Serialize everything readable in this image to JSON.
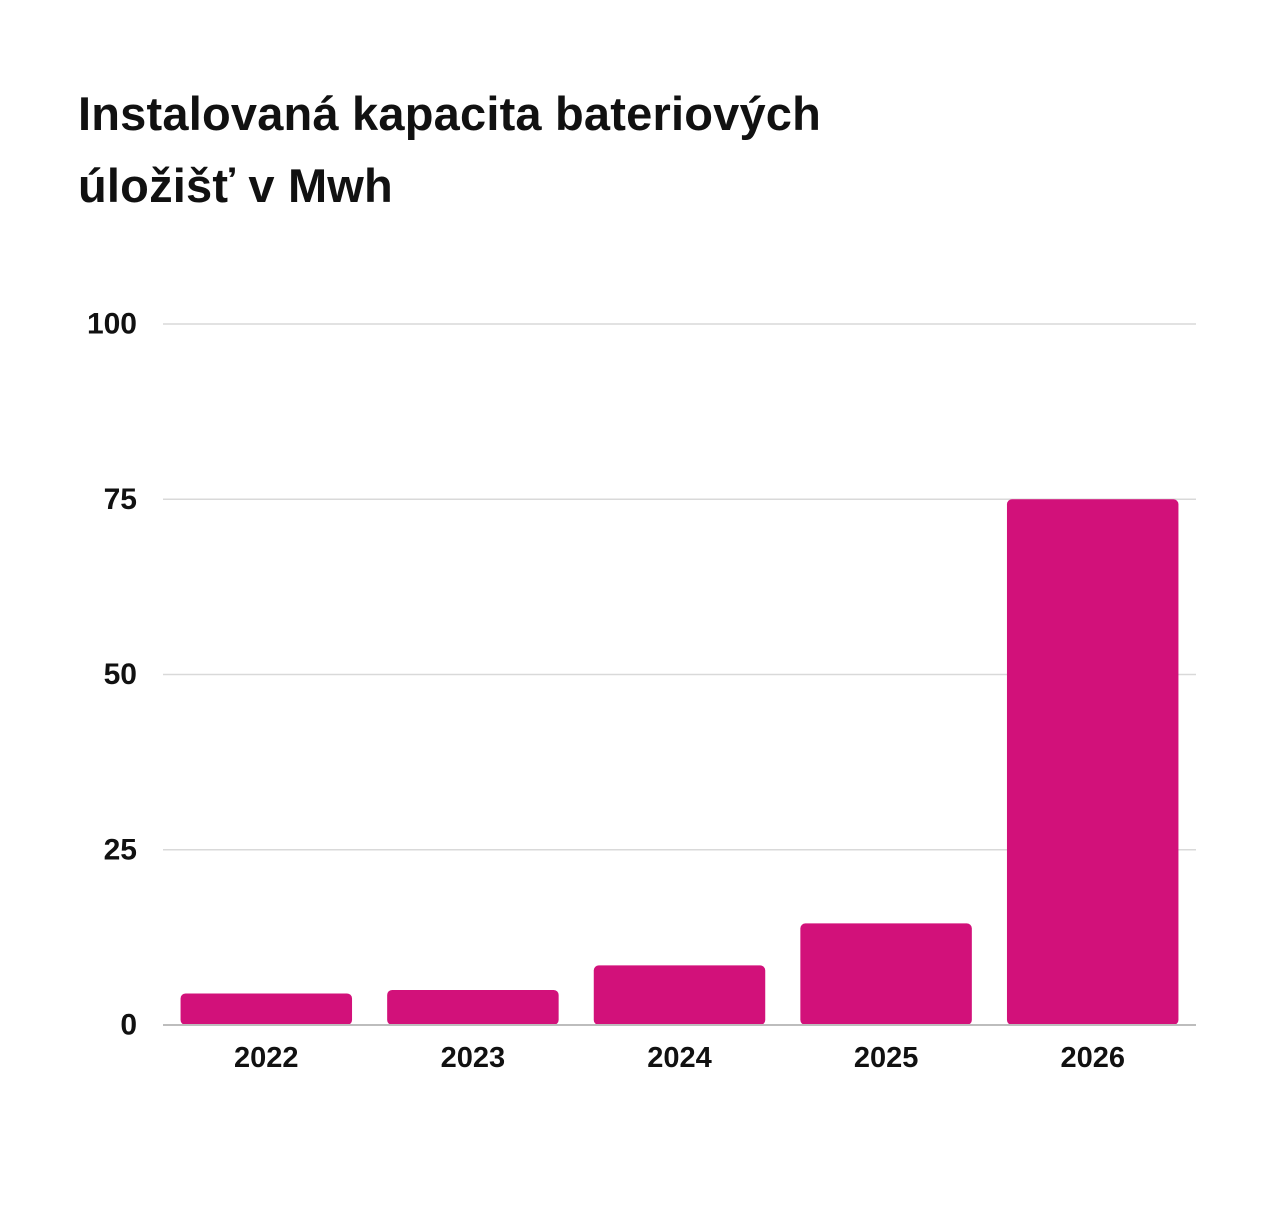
{
  "chart_data": {
    "type": "bar",
    "title": "Instalovaná kapacita bateriových úložišť v Mwh",
    "title_lines": [
      "Instalovaná kapacita bateriových",
      "úložišť v Mwh"
    ],
    "xlabel": "",
    "ylabel": "",
    "categories": [
      "2022",
      "2023",
      "2024",
      "2025",
      "2026"
    ],
    "values": [
      4.5,
      5,
      8.5,
      14.5,
      75
    ],
    "ylim": [
      0,
      100
    ],
    "yticks": [
      0,
      25,
      50,
      75,
      100
    ],
    "grid": true,
    "legend": "none",
    "bar_color": "#D2117A",
    "grid_color": "#D9D9D9",
    "axis_color": "#BDBDBD"
  }
}
